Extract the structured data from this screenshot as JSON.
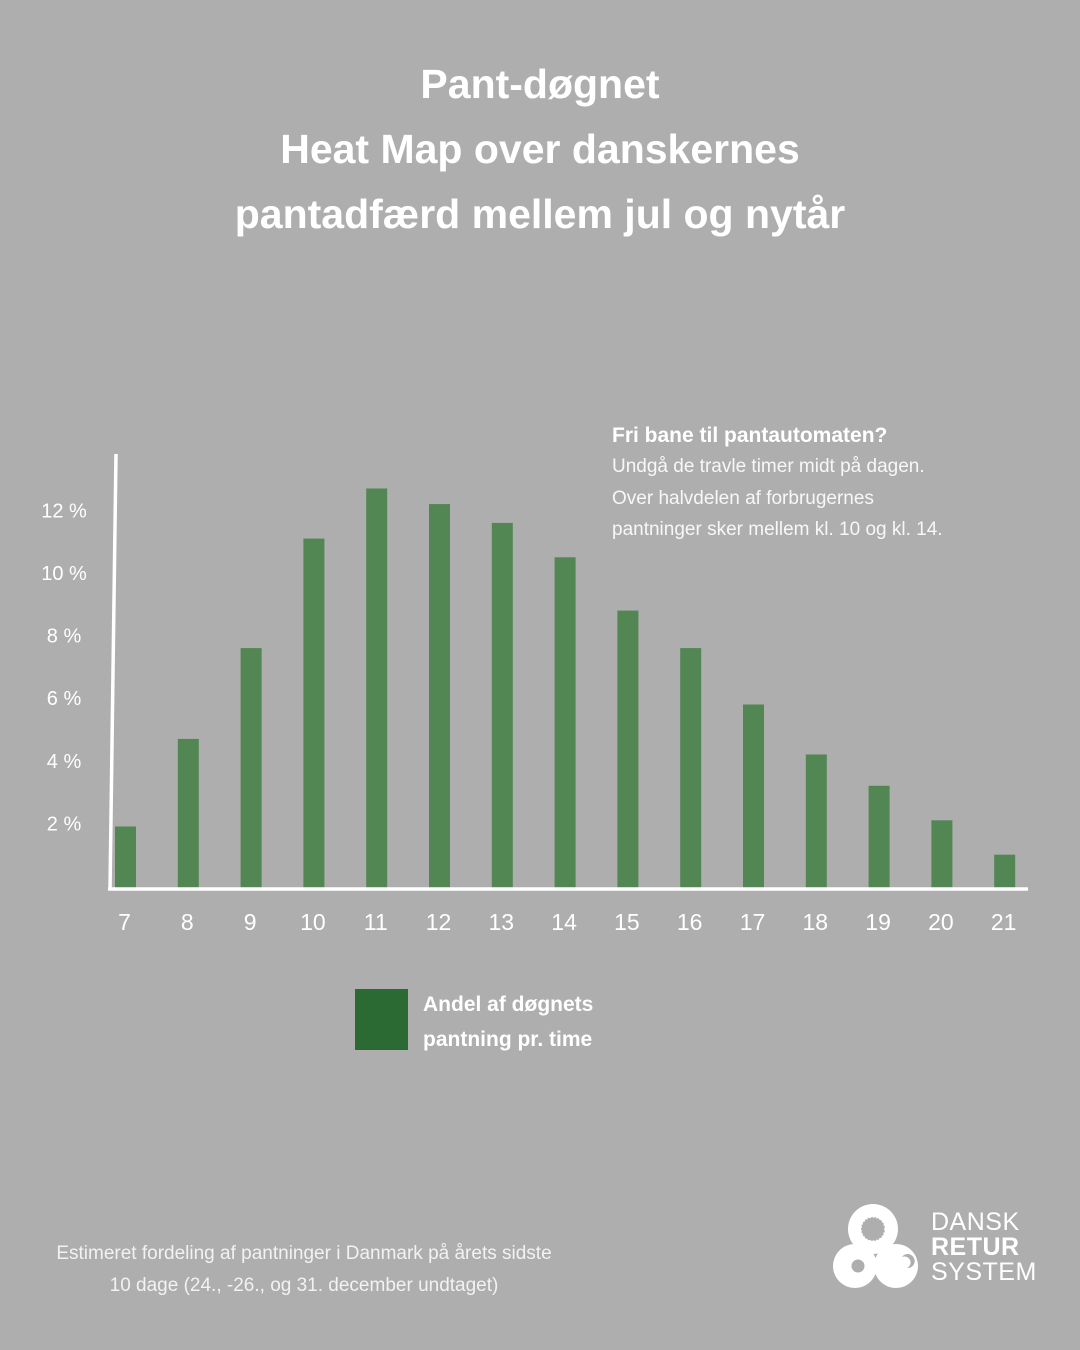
{
  "title": {
    "lines": [
      "Pant-døgnet",
      "Heat Map over danskernes",
      "pantadfærd mellem jul og nytår"
    ]
  },
  "callout": {
    "heading": "Fri bane til pantautomaten?",
    "lines": [
      "Undgå de travle timer midt på dagen.",
      "Over halvdelen af forbrugernes",
      "pantninger sker mellem kl. 10 og kl. 14."
    ]
  },
  "legend": {
    "lines": [
      "Andel af døgnets",
      "pantning pr. time"
    ]
  },
  "footnote": {
    "lines": [
      "Estimeret fordeling af pantninger i Danmark på årets sidste",
      "10 dage (24., -26., og 31. december undtaget)"
    ]
  },
  "logo": {
    "lines": [
      "DANSK",
      "RETUR",
      "SYSTEM"
    ]
  },
  "colors": {
    "background": "#AEAEAE",
    "bar": "#528753",
    "legend_swatch": "#2B6A32",
    "axis": "#FFFFFF",
    "text": "#FFFFFF"
  },
  "chart_data": {
    "type": "bar",
    "title": "Pant-døgnet Heat Map over danskernes pantadfærd mellem jul og nytår",
    "xlabel": "",
    "ylabel": "",
    "categories": [
      "7",
      "8",
      "9",
      "10",
      "11",
      "12",
      "13",
      "14",
      "15",
      "16",
      "17",
      "18",
      "19",
      "20",
      "21"
    ],
    "series": [
      {
        "name": "Andel af døgnets pantning pr. time",
        "values": [
          1.9,
          4.7,
          7.6,
          11.1,
          12.7,
          12.2,
          11.6,
          10.5,
          8.8,
          7.6,
          5.8,
          4.2,
          3.2,
          2.1,
          1.0
        ]
      }
    ],
    "yticks": [
      2,
      4,
      6,
      8,
      10,
      12
    ],
    "ytick_labels": [
      "2 %",
      "4 %",
      "6 %",
      "8 %",
      "10 %",
      "12 %"
    ],
    "ylim": [
      0,
      14
    ],
    "grid": false,
    "legend": "bottom-center"
  }
}
